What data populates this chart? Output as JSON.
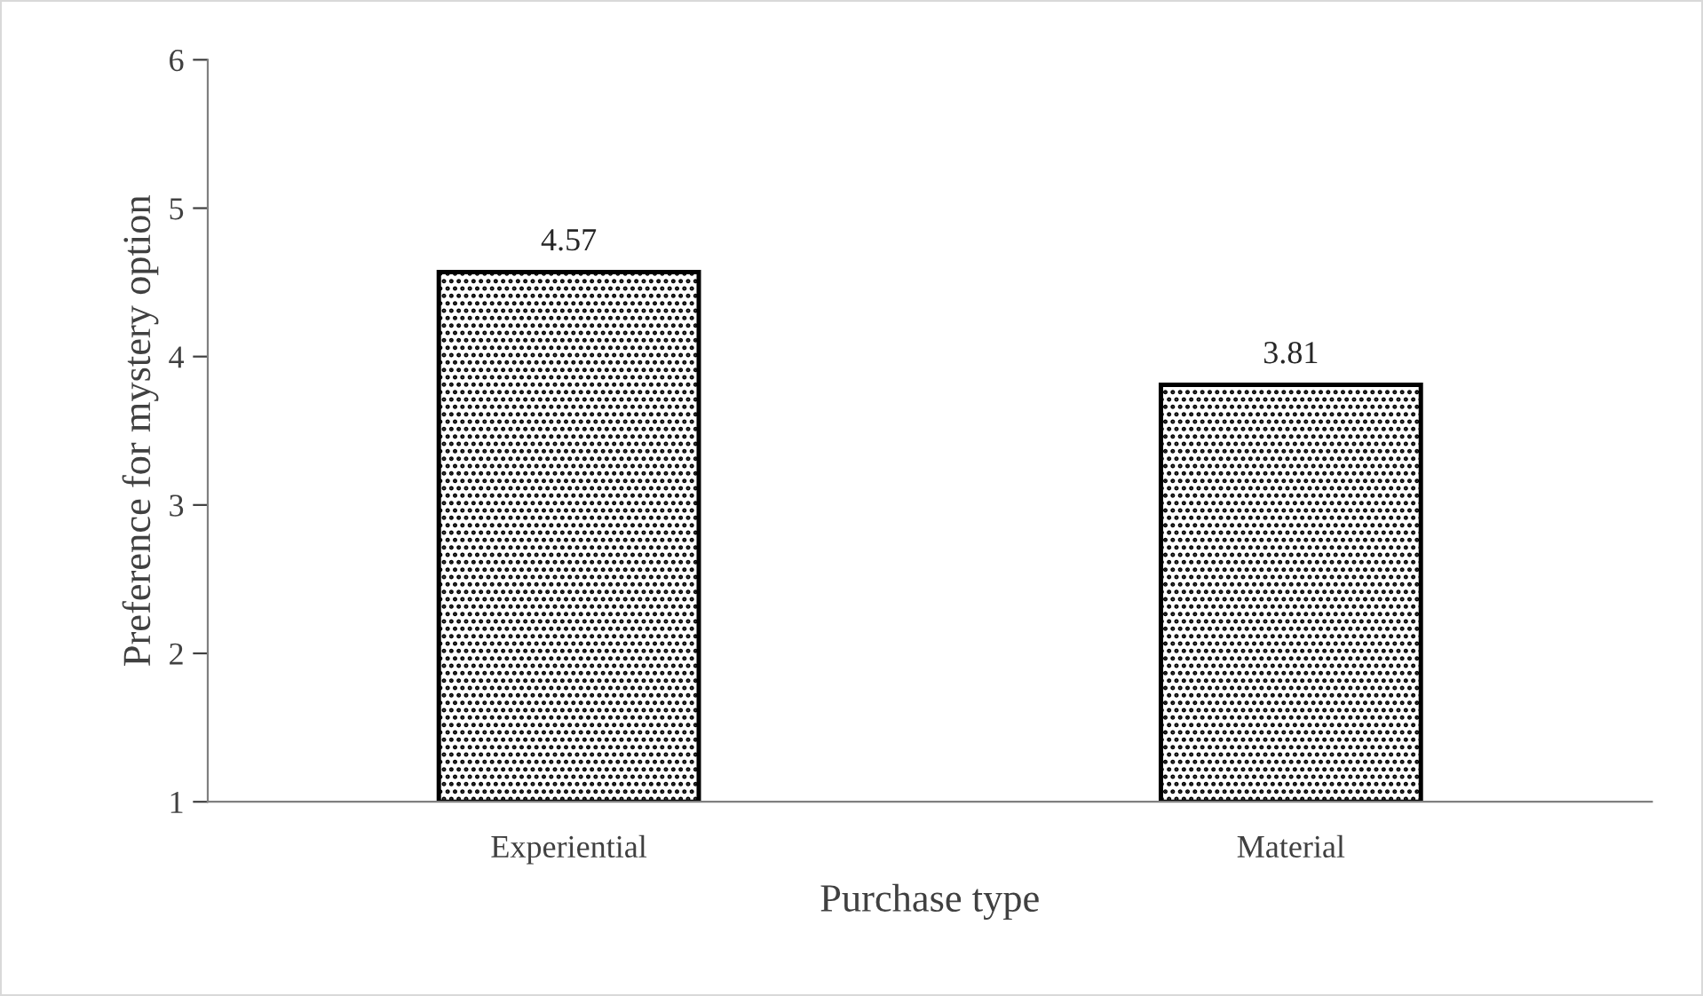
{
  "chart_data": {
    "type": "bar",
    "xlabel": "Purchase type",
    "ylabel": "Preference for mystery option",
    "categories": [
      "Experiential",
      "Material"
    ],
    "values": [
      4.57,
      3.81
    ],
    "color": "#000000",
    "ylim": [
      1,
      6
    ],
    "yticks": [
      1,
      2,
      3,
      4,
      5,
      6
    ],
    "grid": false,
    "data_labels": true
  }
}
